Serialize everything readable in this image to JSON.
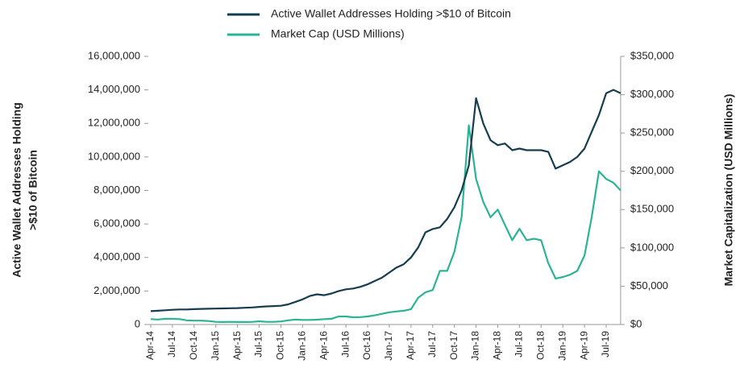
{
  "chart_data": {
    "type": "line",
    "ylabel": [
      "Active Wallet Addresses Holding",
      ">$10 of Bitcoin"
    ],
    "y2label": "Market Capitalization (USD Millions)",
    "categories": [
      "Apr-14",
      null,
      null,
      "Jul-14",
      null,
      null,
      "Oct-14",
      null,
      null,
      "Jan-15",
      null,
      null,
      "Apr-15",
      null,
      null,
      "Jul-15",
      null,
      null,
      "Oct-15",
      null,
      null,
      "Jan-16",
      null,
      null,
      "Apr-16",
      null,
      null,
      "Jul-16",
      null,
      null,
      "Oct-16",
      null,
      null,
      "Jan-17",
      null,
      null,
      "Apr-17",
      null,
      null,
      "Jul-17",
      null,
      null,
      "Oct-17",
      null,
      null,
      "Jan-18",
      null,
      null,
      "Apr-18",
      null,
      null,
      "Jul-18",
      null,
      null,
      "Oct-18",
      null,
      null,
      "Jan-19",
      null,
      null,
      "Apr-19",
      null,
      null,
      "Jul-19",
      null,
      null
    ],
    "series": [
      {
        "name": "Active Wallet Addresses Holding >$10 of Bitcoin",
        "color": "#163d4f",
        "axis": "y",
        "values": [
          800000,
          820000,
          850000,
          880000,
          900000,
          900000,
          920000,
          930000,
          940000,
          950000,
          960000,
          970000,
          980000,
          1000000,
          1020000,
          1050000,
          1080000,
          1100000,
          1120000,
          1200000,
          1350000,
          1500000,
          1700000,
          1800000,
          1750000,
          1850000,
          2000000,
          2100000,
          2150000,
          2250000,
          2400000,
          2600000,
          2800000,
          3100000,
          3400000,
          3600000,
          4000000,
          4600000,
          5500000,
          5700000,
          5800000,
          6300000,
          7000000,
          8000000,
          9500000,
          13500000,
          12000000,
          11000000,
          10700000,
          10800000,
          10400000,
          10500000,
          10400000,
          10400000,
          10400000,
          10300000,
          9300000,
          9500000,
          9700000,
          10000000,
          10500000,
          11500000,
          12500000,
          13800000,
          14000000,
          13800000
        ]
      },
      {
        "name": "Market Cap (USD Millions)",
        "color": "#2ab495",
        "axis": "y2",
        "values": [
          7000,
          6500,
          7500,
          7500,
          7000,
          5500,
          5000,
          5000,
          4500,
          3500,
          3300,
          3500,
          3300,
          3300,
          3400,
          4200,
          3500,
          3500,
          4000,
          5500,
          6500,
          6000,
          6000,
          6300,
          7000,
          7500,
          10500,
          10500,
          9500,
          9700,
          10500,
          12000,
          14000,
          16000,
          17000,
          18000,
          20000,
          35000,
          42000,
          45000,
          70000,
          70000,
          95000,
          140000,
          260000,
          190000,
          160000,
          140000,
          150000,
          130000,
          110000,
          125000,
          110000,
          112000,
          110000,
          80000,
          60000,
          62000,
          65000,
          70000,
          90000,
          140000,
          200000,
          190000,
          185000,
          175000
        ]
      }
    ],
    "ylim": [
      0,
      16000000
    ],
    "yticks": [
      0,
      {
        "value": 2000000,
        "label": "2,000,000"
      },
      {
        "value": 4000000,
        "label": "4,000,000"
      },
      {
        "value": 6000000,
        "label": "6,000,000"
      },
      {
        "value": 8000000,
        "label": "8,000,000"
      },
      {
        "value": 10000000,
        "label": "10,000,000"
      },
      {
        "value": 12000000,
        "label": "12,000,000"
      },
      {
        "value": 14000000,
        "label": "14,000,000"
      },
      {
        "value": 16000000,
        "label": "16,000,000"
      }
    ],
    "y2lim": [
      0,
      350000
    ],
    "y2ticks": [
      {
        "value": 0,
        "label": "$0"
      },
      {
        "value": 50000,
        "label": "$50,000"
      },
      {
        "value": 100000,
        "label": "$100,000"
      },
      {
        "value": 150000,
        "label": "$150,000"
      },
      {
        "value": 200000,
        "label": "$200,000"
      },
      {
        "value": 250000,
        "label": "$250,000"
      },
      {
        "value": 300000,
        "label": "$300,000"
      },
      {
        "value": 350000,
        "label": "$350,000"
      }
    ],
    "legend": "top"
  }
}
